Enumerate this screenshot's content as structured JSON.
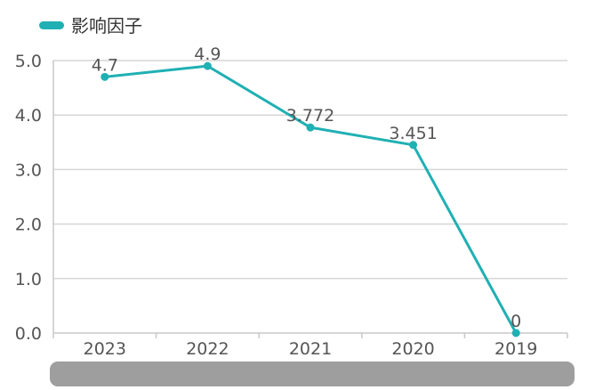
{
  "chart_data": {
    "type": "line",
    "categories": [
      "2023",
      "2022",
      "2021",
      "2020",
      "2019"
    ],
    "series": [
      {
        "name": "影响因子",
        "values": [
          4.7,
          4.9,
          3.772,
          3.451,
          0
        ],
        "labels": [
          "4.7",
          "4.9",
          "3.772",
          "3.451",
          "0"
        ],
        "color": "#1fb0b3"
      }
    ],
    "y_ticks": [
      "0.0",
      "1.0",
      "2.0",
      "3.0",
      "4.0",
      "5.0"
    ],
    "ylim": [
      0,
      5
    ],
    "grid": true,
    "legend_position": "top-left",
    "colors": {
      "line": "#1fb0b3",
      "grid": "#d6d6d6",
      "axis": "#c8c8c8",
      "text": "#555555",
      "bottom_bar": "#9e9e9e"
    }
  }
}
